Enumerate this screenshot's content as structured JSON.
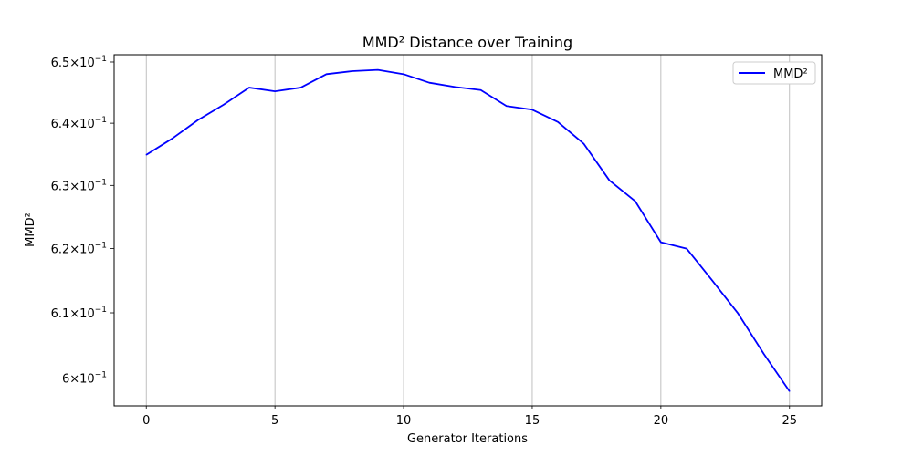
{
  "chart_data": {
    "type": "line",
    "title": "MMD² Distance over Training",
    "xlabel": "Generator Iterations",
    "ylabel": "MMD²",
    "x": [
      0,
      1,
      2,
      3,
      4,
      5,
      6,
      7,
      8,
      9,
      10,
      11,
      12,
      13,
      14,
      15,
      16,
      17,
      18,
      19,
      20,
      21,
      22,
      23,
      24,
      25
    ],
    "series": [
      {
        "name": "MMD²",
        "color": "#0000ff",
        "values": [
          0.6349,
          0.6375,
          0.6405,
          0.643,
          0.6458,
          0.6452,
          0.6458,
          0.648,
          0.6485,
          0.6487,
          0.648,
          0.6466,
          0.6459,
          0.6454,
          0.6428,
          0.6422,
          0.6402,
          0.6367,
          0.6308,
          0.6275,
          0.621,
          0.62,
          0.615,
          0.6099,
          0.6037,
          0.598
        ]
      }
    ],
    "xlim": [
      -1.25,
      26.25
    ],
    "ylim": [
      0.5958,
      0.6512
    ],
    "yscale": "log",
    "xticks": [
      0,
      5,
      10,
      15,
      20,
      25
    ],
    "xtick_labels": [
      "0",
      "5",
      "10",
      "15",
      "20",
      "25"
    ],
    "yticks": [
      0.6,
      0.61,
      0.62,
      0.63,
      0.64,
      0.65
    ],
    "ytick_labels": [
      {
        "mantissa": "6",
        "exp": "−1"
      },
      {
        "mantissa": "6.1",
        "exp": "−1"
      },
      {
        "mantissa": "6.2",
        "exp": "−1"
      },
      {
        "mantissa": "6.3",
        "exp": "−1"
      },
      {
        "mantissa": "6.4",
        "exp": "−1"
      },
      {
        "mantissa": "6.5",
        "exp": "−1"
      }
    ],
    "grid": "x",
    "legend": "top-right"
  }
}
